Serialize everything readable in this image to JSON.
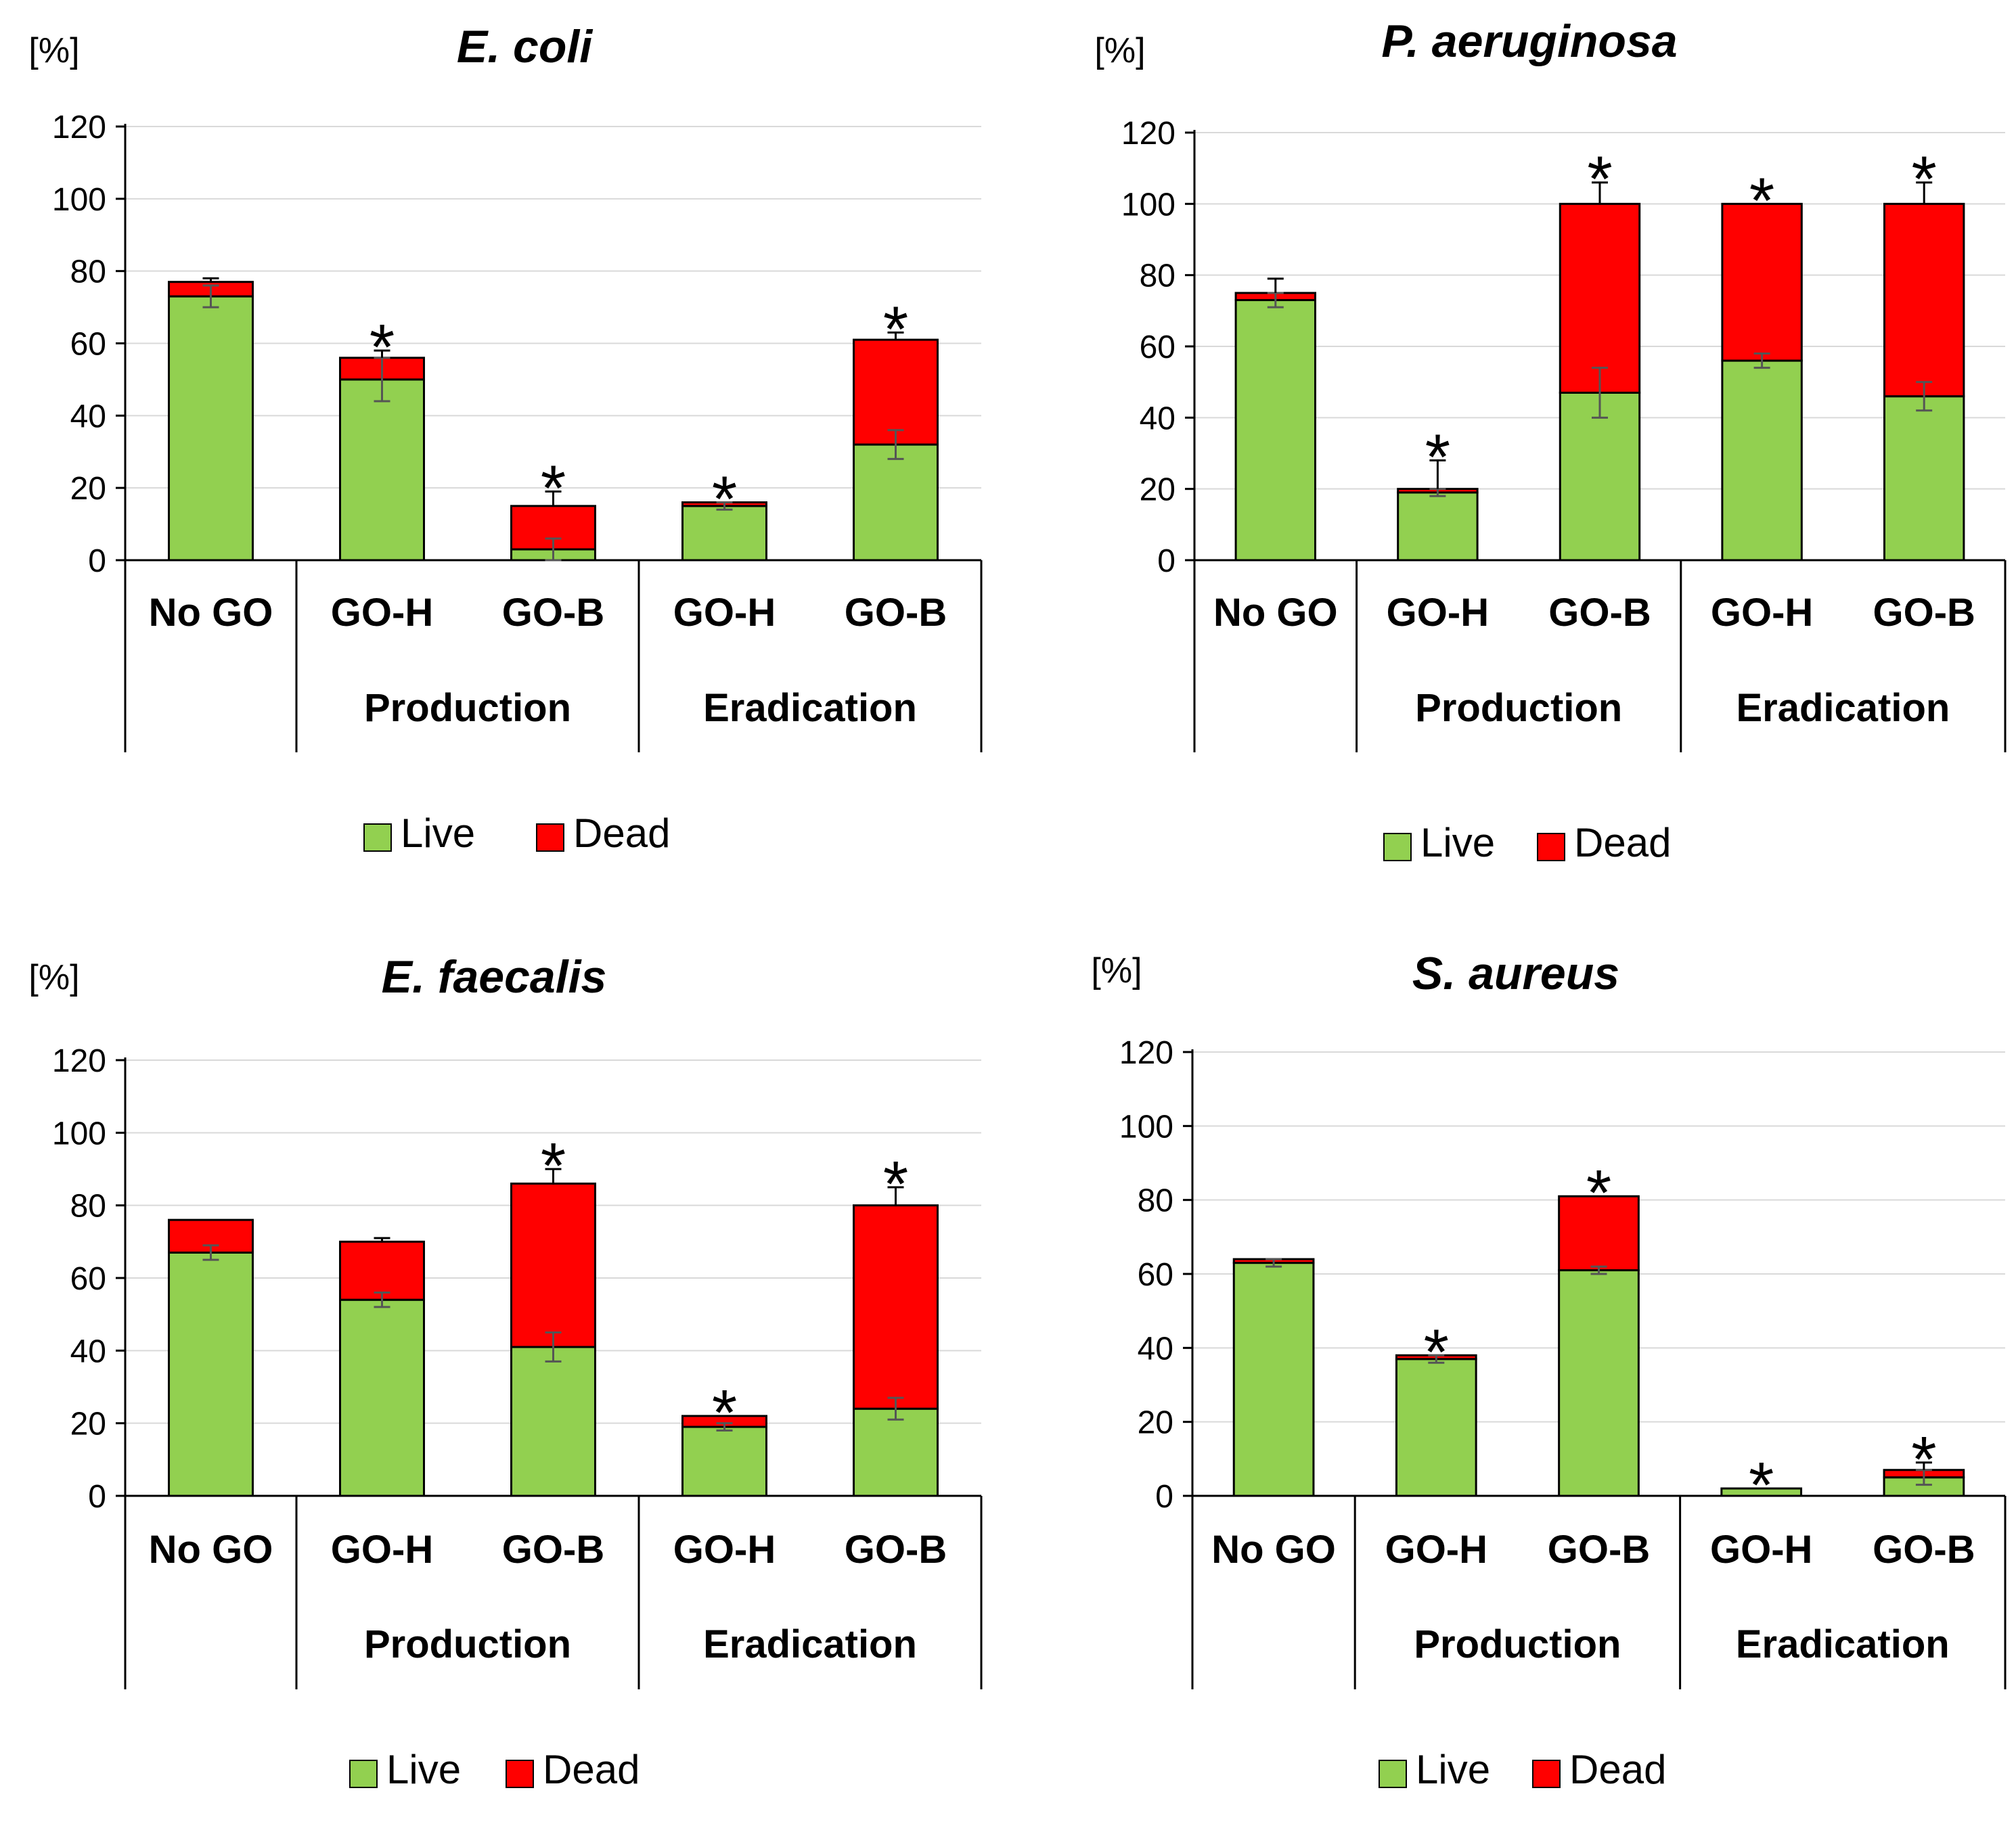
{
  "colors": {
    "live": "#92d050",
    "dead": "#ff0000",
    "axis": "#000000",
    "grid": "#d9d9d9",
    "error": "#555555"
  },
  "legend": {
    "live": "Live",
    "dead": "Dead"
  },
  "chart_data": [
    {
      "type": "bar",
      "stacked": true,
      "title": "E. coli",
      "ylabel": "[%]",
      "ylim": [
        0,
        120
      ],
      "yticks": [
        0,
        20,
        40,
        60,
        80,
        100,
        120
      ],
      "categories": [
        "No GO",
        "GO-H",
        "GO-B",
        "GO-H",
        "GO-B"
      ],
      "groups": [
        {
          "label": "",
          "span": 1
        },
        {
          "label": "Production",
          "span": 2
        },
        {
          "label": "Eradication",
          "span": 2
        }
      ],
      "series": [
        {
          "name": "Live",
          "values": [
            73,
            50,
            3,
            15,
            32
          ]
        },
        {
          "name": "Dead",
          "values": [
            4,
            6,
            12,
            1,
            29
          ]
        }
      ],
      "error_live": [
        3,
        6,
        3,
        1,
        4
      ],
      "error_dead": [
        1,
        2,
        4,
        0,
        2
      ],
      "significant": [
        false,
        true,
        true,
        true,
        true
      ],
      "significance_mark": "*"
    },
    {
      "type": "bar",
      "stacked": true,
      "title": "P. aeruginosa",
      "ylabel": "[%]",
      "ylim": [
        0,
        120
      ],
      "yticks": [
        0,
        20,
        40,
        60,
        80,
        100,
        120
      ],
      "categories": [
        "No GO",
        "GO-H",
        "GO-B",
        "GO-H",
        "GO-B"
      ],
      "groups": [
        {
          "label": "",
          "span": 1
        },
        {
          "label": "Production",
          "span": 2
        },
        {
          "label": "Eradication",
          "span": 2
        }
      ],
      "series": [
        {
          "name": "Live",
          "values": [
            73,
            19,
            47,
            56,
            46
          ]
        },
        {
          "name": "Dead",
          "values": [
            2,
            1,
            53,
            44,
            54
          ]
        }
      ],
      "error_live": [
        2,
        1,
        7,
        2,
        4
      ],
      "error_dead": [
        4,
        8,
        6,
        0,
        6
      ],
      "significant": [
        false,
        true,
        true,
        true,
        true
      ],
      "significance_mark": "*"
    },
    {
      "type": "bar",
      "stacked": true,
      "title": "E. faecalis",
      "ylabel": "[%]",
      "ylim": [
        0,
        120
      ],
      "yticks": [
        0,
        20,
        40,
        60,
        80,
        100,
        120
      ],
      "categories": [
        "No GO",
        "GO-H",
        "GO-B",
        "GO-H",
        "GO-B"
      ],
      "groups": [
        {
          "label": "",
          "span": 1
        },
        {
          "label": "Production",
          "span": 2
        },
        {
          "label": "Eradication",
          "span": 2
        }
      ],
      "series": [
        {
          "name": "Live",
          "values": [
            67,
            54,
            41,
            19,
            24
          ]
        },
        {
          "name": "Dead",
          "values": [
            9,
            16,
            45,
            3,
            56
          ]
        }
      ],
      "error_live": [
        2,
        2,
        4,
        1,
        3
      ],
      "error_dead": [
        0,
        1,
        4,
        0,
        5
      ],
      "significant": [
        false,
        false,
        true,
        true,
        true
      ],
      "significance_mark": "*"
    },
    {
      "type": "bar",
      "stacked": true,
      "title": "S. aureus",
      "ylabel": "[%]",
      "ylim": [
        0,
        120
      ],
      "yticks": [
        0,
        20,
        40,
        60,
        80,
        100,
        120
      ],
      "categories": [
        "No GO",
        "GO-H",
        "GO-B",
        "GO-H",
        "GO-B"
      ],
      "groups": [
        {
          "label": "",
          "span": 1
        },
        {
          "label": "Production",
          "span": 2
        },
        {
          "label": "Eradication",
          "span": 2
        }
      ],
      "series": [
        {
          "name": "Live",
          "values": [
            63,
            37,
            61,
            2,
            5
          ]
        },
        {
          "name": "Dead",
          "values": [
            1,
            1,
            20,
            0,
            2
          ]
        }
      ],
      "error_live": [
        1,
        1,
        1,
        0,
        2
      ],
      "error_dead": [
        0,
        0,
        0,
        0,
        2
      ],
      "significant": [
        false,
        true,
        true,
        true,
        true
      ],
      "significance_mark": "*"
    }
  ]
}
